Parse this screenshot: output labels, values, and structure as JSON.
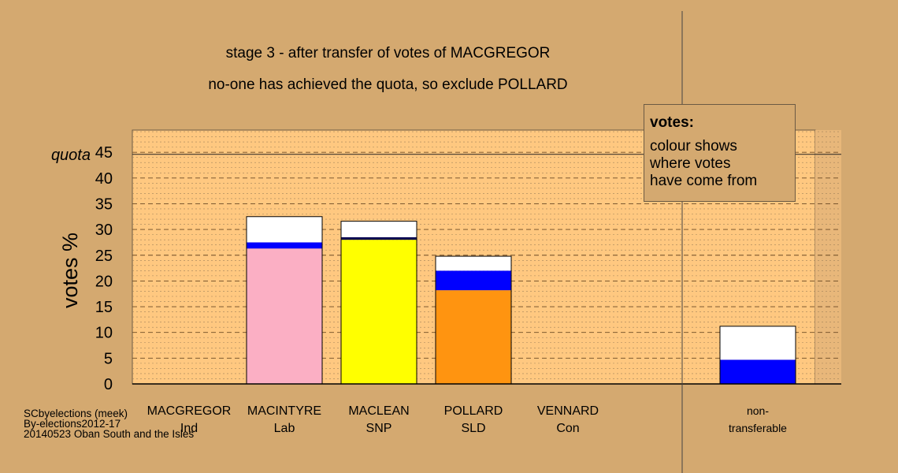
{
  "titles": {
    "line1": "stage 3 - after transfer of votes of MACGREGOR",
    "line2": "no-one has achieved the quota, so exclude POLLARD"
  },
  "legend": {
    "heading": "votes:",
    "lines": [
      "colour shows",
      "where votes",
      "have come from"
    ]
  },
  "credit": {
    "lines": [
      "SCbyelections (meek)",
      "By-elections2012-17",
      "20140523 Oban South and the Isles"
    ]
  },
  "colors": {
    "background": "#D4A970",
    "plot_area": "#FFC880",
    "lab": "#FBAFC4",
    "snp": "#FFFF00",
    "sld": "#FF9410",
    "transfer_blue": "#0000FF",
    "transfer_navy": "#000050",
    "white": "#FFFFFF"
  },
  "chart_data": {
    "type": "bar",
    "stacked": true,
    "ylabel": "votes %",
    "ylim": [
      0,
      49
    ],
    "yticks": [
      0,
      5,
      10,
      15,
      20,
      25,
      30,
      35,
      40,
      45
    ],
    "quota": {
      "label": "quota",
      "value": 44.6
    },
    "grid": true,
    "categories": [
      {
        "name": "MACGREGOR",
        "party": "Ind"
      },
      {
        "name": "MACINTYRE",
        "party": "Lab"
      },
      {
        "name": "MACLEAN",
        "party": "SNP"
      },
      {
        "name": "POLLARD",
        "party": "SLD"
      },
      {
        "name": "VENNARD",
        "party": "Con"
      },
      {
        "name": "non-",
        "party": "transferable"
      }
    ],
    "bars": [
      {
        "category": "MACGREGOR",
        "segments": []
      },
      {
        "category": "MACINTYRE",
        "segments": [
          {
            "from": "Lab",
            "value": 26.3,
            "color": "#FBAFC4"
          },
          {
            "from": "blue",
            "value": 1.2,
            "color": "#0000FF"
          },
          {
            "from": "white",
            "value": 5.0,
            "color": "#FFFFFF"
          }
        ]
      },
      {
        "category": "MACLEAN",
        "segments": [
          {
            "from": "SNP",
            "value": 28.0,
            "color": "#FFFF00"
          },
          {
            "from": "navy",
            "value": 0.5,
            "color": "#000050"
          },
          {
            "from": "white",
            "value": 3.1,
            "color": "#FFFFFF"
          }
        ]
      },
      {
        "category": "POLLARD",
        "segments": [
          {
            "from": "SLD",
            "value": 18.2,
            "color": "#FF9410"
          },
          {
            "from": "blue",
            "value": 3.8,
            "color": "#0000FF"
          },
          {
            "from": "white",
            "value": 2.8,
            "color": "#FFFFFF"
          }
        ]
      },
      {
        "category": "VENNARD",
        "segments": []
      },
      {
        "category": "non-transferable",
        "segments": [
          {
            "from": "blue",
            "value": 4.7,
            "color": "#0000FF"
          },
          {
            "from": "white",
            "value": 6.5,
            "color": "#FFFFFF"
          }
        ]
      }
    ]
  }
}
